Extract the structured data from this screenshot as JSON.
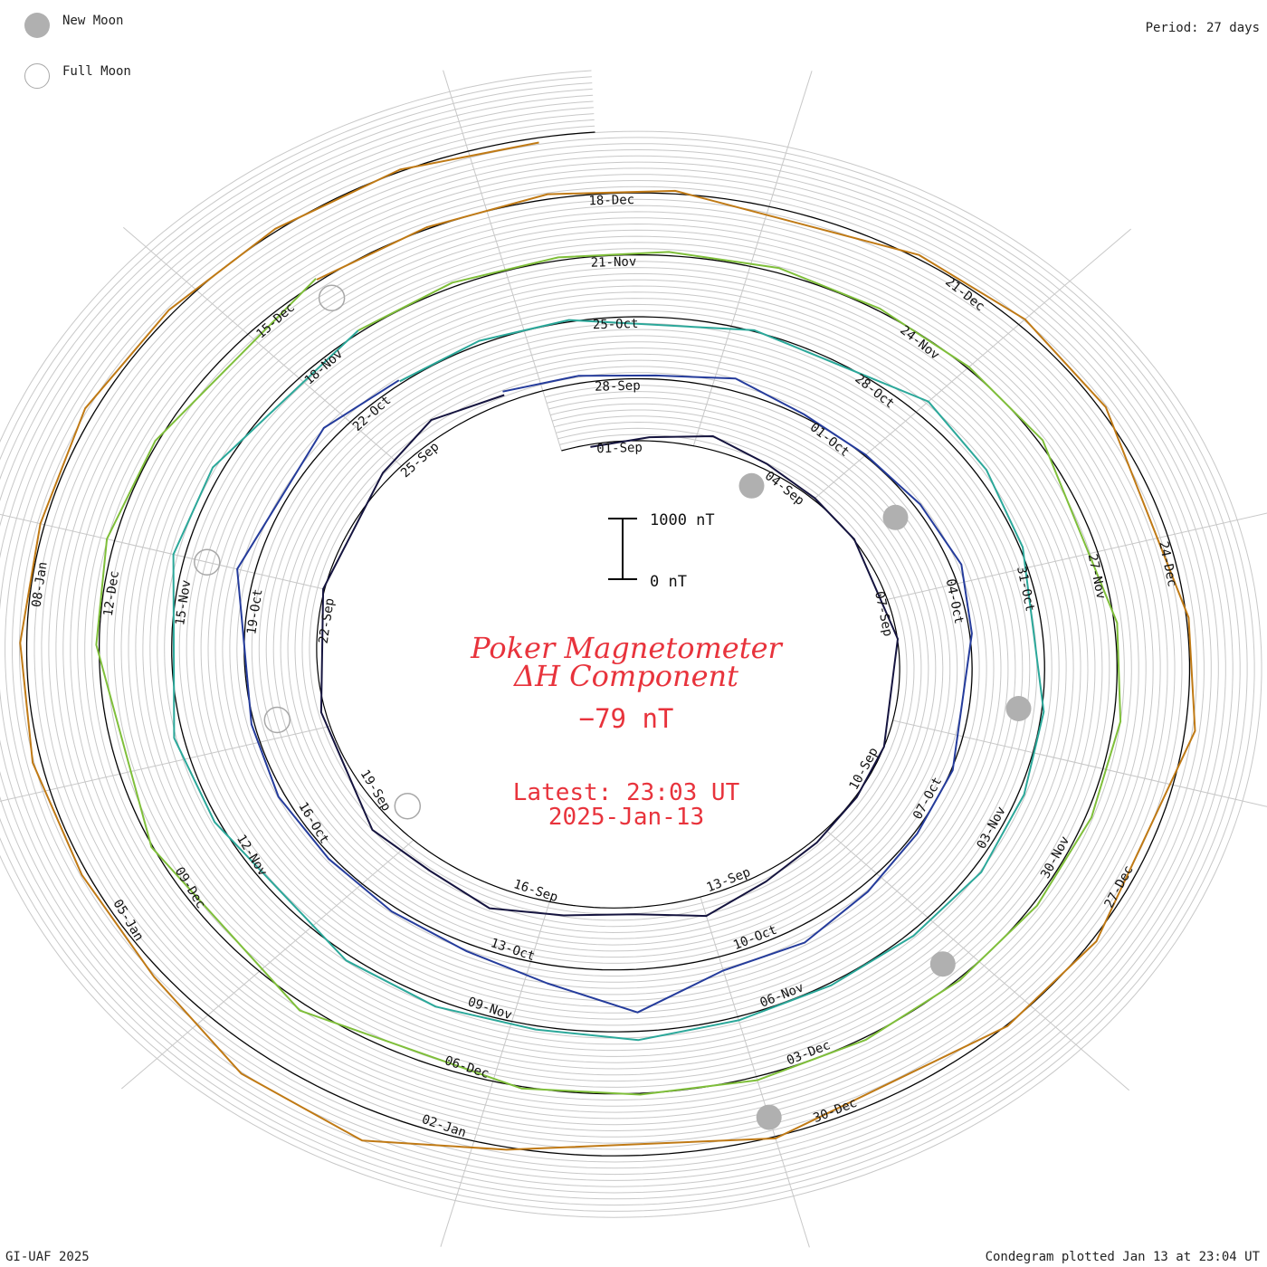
{
  "legend": {
    "new_moon_label": "New Moon",
    "full_moon_label": "Full Moon",
    "new_moon_color": "#b0b0b0",
    "full_moon_color": "#a8a8a8"
  },
  "period_label": "Period: 27 days",
  "footer_left": "GI-UAF 2025",
  "footer_right": "Condegram plotted Jan 13 at 23:04 UT",
  "colors": {
    "title": "#e8333c",
    "grid": "#c8c8c8",
    "baseline": "#000000"
  },
  "chart_data": {
    "type": "line",
    "title": "Poker Magnetometer",
    "subtitle": "ΔH Component",
    "current_value": "−79 nT",
    "latest_time": "Latest: 23:03 UT",
    "latest_date": "2025-Jan-13",
    "scale_bar": {
      "top_label": "1000 nT",
      "bottom_label": "0 nT"
    },
    "period_days": 27,
    "spiral_start_date": "2024-08-31",
    "spiral_end_date": "2025-01-13",
    "date_labels": [
      "01-Sep",
      "04-Sep",
      "07-Sep",
      "10-Sep",
      "13-Sep",
      "16-Sep",
      "19-Sep",
      "22-Sep",
      "25-Sep",
      "28-Sep",
      "01-Oct",
      "04-Oct",
      "07-Oct",
      "10-Oct",
      "13-Oct",
      "16-Oct",
      "19-Oct",
      "22-Oct",
      "25-Oct",
      "28-Oct",
      "31-Oct",
      "03-Nov",
      "06-Nov",
      "09-Nov",
      "12-Nov",
      "15-Nov",
      "18-Nov",
      "21-Nov",
      "24-Nov",
      "27-Nov",
      "30-Nov",
      "03-Dec",
      "06-Dec",
      "09-Dec",
      "12-Dec",
      "15-Dec",
      "18-Dec",
      "21-Dec",
      "24-Dec",
      "27-Dec",
      "30-Dec",
      "02-Jan",
      "05-Jan",
      "08-Jan"
    ],
    "new_moons": [
      "2024-09-03",
      "2024-10-02",
      "2024-11-01",
      "2024-12-01",
      "2024-12-30"
    ],
    "full_moons": [
      "2024-09-18",
      "2024-10-17",
      "2024-11-15",
      "2024-12-15"
    ],
    "series": [
      {
        "color": "#15143f",
        "x": [
          "2024-08-31",
          "2024-09-01",
          "2024-09-02",
          "2024-09-03",
          "2024-09-04",
          "2024-09-05",
          "2024-09-07",
          "2024-09-09",
          "2024-09-10",
          "2024-09-11",
          "2024-09-12",
          "2024-09-13",
          "2024-09-14",
          "2024-09-15",
          "2024-09-16",
          "2024-09-17",
          "2024-09-18",
          "2024-09-20",
          "2024-09-22",
          "2024-09-24",
          "2024-09-25",
          "2024-09-26"
        ],
        "y": [
          -40,
          60,
          220,
          90,
          30,
          10,
          5,
          0,
          20,
          60,
          140,
          320,
          110,
          180,
          360,
          240,
          300,
          60,
          20,
          120,
          280,
          120
        ]
      },
      {
        "color": "#253c9c",
        "x": [
          "2024-09-26",
          "2024-09-27",
          "2024-09-28",
          "2024-09-29",
          "2024-09-30",
          "2024-10-01",
          "2024-10-02",
          "2024-10-03",
          "2024-10-04",
          "2024-10-06",
          "2024-10-07",
          "2024-10-08",
          "2024-10-09",
          "2024-10-10",
          "2024-10-11",
          "2024-10-12",
          "2024-10-13",
          "2024-10-14",
          "2024-10-15",
          "2024-10-16",
          "2024-10-17",
          "2024-10-19",
          "2024-10-21",
          "2024-10-22"
        ],
        "y": [
          180,
          120,
          60,
          200,
          40,
          20,
          80,
          150,
          30,
          20,
          40,
          120,
          260,
          230,
          700,
          300,
          120,
          80,
          60,
          90,
          40,
          250,
          210,
          60
        ]
      },
      {
        "color": "#2ba89a",
        "x": [
          "2024-10-22",
          "2024-10-23",
          "2024-10-24",
          "2024-10-26",
          "2024-10-28",
          "2024-10-29",
          "2024-10-30",
          "2024-11-01",
          "2024-11-02",
          "2024-11-03",
          "2024-11-04",
          "2024-11-05",
          "2024-11-06",
          "2024-11-07",
          "2024-11-08",
          "2024-11-09",
          "2024-11-10",
          "2024-11-12",
          "2024-11-13",
          "2024-11-15",
          "2024-11-16",
          "2024-11-18"
        ],
        "y": [
          40,
          60,
          30,
          20,
          240,
          150,
          40,
          30,
          80,
          120,
          70,
          40,
          60,
          140,
          60,
          110,
          90,
          60,
          130,
          160,
          140,
          40
        ]
      },
      {
        "color": "#7fbf3a",
        "x": [
          "2024-11-18",
          "2024-11-19",
          "2024-11-20",
          "2024-11-21",
          "2024-11-22",
          "2024-11-23",
          "2024-11-24",
          "2024-11-25",
          "2024-11-27",
          "2024-11-28",
          "2024-11-29",
          "2024-11-30",
          "2024-12-01",
          "2024-12-02",
          "2024-12-03",
          "2024-12-04",
          "2024-12-05",
          "2024-12-07",
          "2024-12-09",
          "2024-12-11",
          "2024-12-12",
          "2024-12-13",
          "2024-12-15"
        ],
        "y": [
          40,
          70,
          50,
          60,
          80,
          40,
          30,
          60,
          40,
          100,
          80,
          60,
          30,
          40,
          60,
          20,
          30,
          120,
          20,
          40,
          110,
          40,
          60
        ]
      },
      {
        "color": "#c07a15",
        "x": [
          "2024-12-15",
          "2024-12-16",
          "2024-12-17",
          "2024-12-18",
          "2024-12-20",
          "2024-12-21",
          "2024-12-22",
          "2024-12-24",
          "2024-12-25",
          "2024-12-27",
          "2024-12-28",
          "2024-12-30",
          "2025-01-01",
          "2025-01-02",
          "2025-01-03",
          "2025-01-04",
          "2025-01-05",
          "2025-01-06",
          "2025-01-07",
          "2025-01-08",
          "2025-01-09",
          "2025-01-10",
          "2025-01-11",
          "2025-01-12",
          "2025-01-13"
        ],
        "y": [
          40,
          30,
          80,
          50,
          60,
          120,
          80,
          30,
          140,
          60,
          20,
          30,
          40,
          500,
          420,
          130,
          80,
          120,
          90,
          60,
          140,
          70,
          40,
          30,
          -79
        ]
      }
    ]
  }
}
